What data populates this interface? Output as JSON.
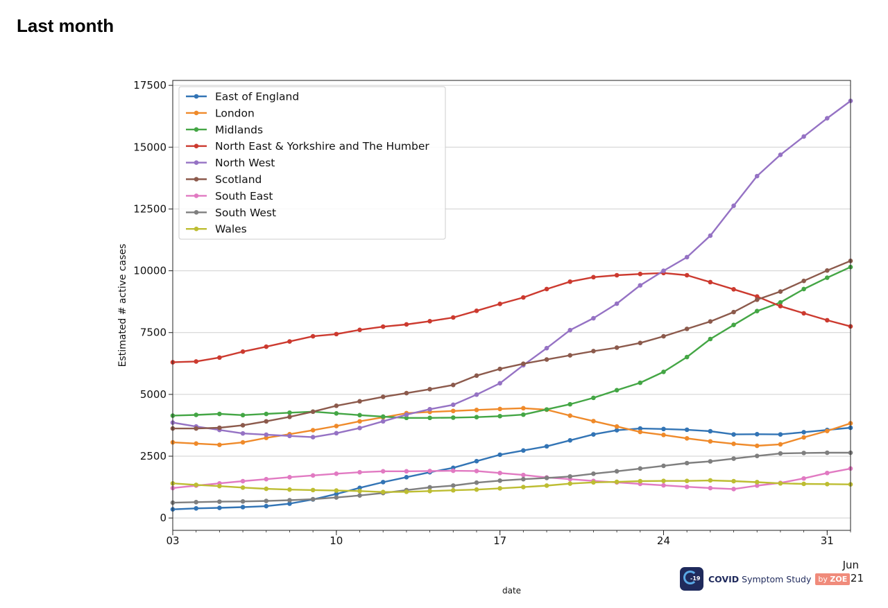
{
  "page": {
    "title": "Last month"
  },
  "chart_data": {
    "type": "line",
    "title": "",
    "xlabel": "date",
    "ylabel": "Estimated # active cases",
    "ylim": [
      -500,
      17700
    ],
    "xlim": [
      "2021-05-03",
      "2021-06-01"
    ],
    "x_ticks": [
      {
        "date": "2021-05-03",
        "label": "03"
      },
      {
        "date": "2021-05-10",
        "label": "10"
      },
      {
        "date": "2021-05-17",
        "label": "17"
      },
      {
        "date": "2021-05-24",
        "label": "24"
      },
      {
        "date": "2021-05-31",
        "label": "31"
      }
    ],
    "x_period_label": [
      "Jun",
      "2021"
    ],
    "y_ticks": [
      0,
      2500,
      5000,
      7500,
      10000,
      12500,
      15000,
      17500
    ],
    "grid": "horizontal",
    "legend_position": "upper-left",
    "x": [
      "2021-05-03",
      "2021-05-04",
      "2021-05-05",
      "2021-05-06",
      "2021-05-07",
      "2021-05-08",
      "2021-05-09",
      "2021-05-10",
      "2021-05-11",
      "2021-05-12",
      "2021-05-13",
      "2021-05-14",
      "2021-05-15",
      "2021-05-16",
      "2021-05-17",
      "2021-05-18",
      "2021-05-19",
      "2021-05-20",
      "2021-05-21",
      "2021-05-22",
      "2021-05-23",
      "2021-05-24",
      "2021-05-25",
      "2021-05-26",
      "2021-05-27",
      "2021-05-28",
      "2021-05-29",
      "2021-05-30",
      "2021-05-31",
      "2021-06-01"
    ],
    "series": [
      {
        "name": "East of England",
        "color": "#3274b5",
        "values": [
          350,
          390,
          410,
          440,
          480,
          580,
          750,
          970,
          1220,
          1450,
          1650,
          1850,
          2030,
          2300,
          2560,
          2730,
          2900,
          3140,
          3380,
          3550,
          3620,
          3600,
          3570,
          3510,
          3380,
          3390,
          3380,
          3470,
          3560,
          3650
        ]
      },
      {
        "name": "London",
        "color": "#ef8a2a",
        "values": [
          3060,
          3010,
          2960,
          3060,
          3240,
          3390,
          3550,
          3720,
          3910,
          4070,
          4240,
          4290,
          4330,
          4370,
          4410,
          4440,
          4380,
          4140,
          3920,
          3700,
          3480,
          3360,
          3220,
          3100,
          3000,
          2920,
          2980,
          3260,
          3520,
          3830
        ]
      },
      {
        "name": "Midlands",
        "color": "#44a645",
        "values": [
          4140,
          4170,
          4210,
          4160,
          4210,
          4260,
          4300,
          4230,
          4160,
          4100,
          4050,
          4050,
          4060,
          4080,
          4120,
          4180,
          4390,
          4600,
          4860,
          5170,
          5470,
          5910,
          6510,
          7240,
          7810,
          8370,
          8720,
          9260,
          9720,
          10150
        ]
      },
      {
        "name": "North East & Yorkshire and The Humber",
        "color": "#cc3a2f",
        "values": [
          6300,
          6330,
          6490,
          6730,
          6930,
          7140,
          7350,
          7440,
          7610,
          7740,
          7830,
          7960,
          8110,
          8380,
          8660,
          8920,
          9260,
          9560,
          9740,
          9820,
          9870,
          9910,
          9820,
          9540,
          9250,
          8960,
          8570,
          8280,
          8000,
          7750
        ]
      },
      {
        "name": "North West",
        "color": "#9572c4",
        "values": [
          3860,
          3700,
          3560,
          3420,
          3370,
          3320,
          3270,
          3430,
          3640,
          3910,
          4180,
          4400,
          4580,
          4990,
          5450,
          6180,
          6870,
          7600,
          8080,
          8670,
          9410,
          10000,
          10550,
          11420,
          12630,
          13830,
          14690,
          15430,
          16170,
          16870
        ]
      },
      {
        "name": "Scotland",
        "color": "#8c5a4c",
        "values": [
          3620,
          3620,
          3650,
          3750,
          3910,
          4090,
          4300,
          4540,
          4720,
          4900,
          5050,
          5210,
          5380,
          5760,
          6030,
          6240,
          6410,
          6580,
          6750,
          6890,
          7080,
          7350,
          7650,
          7950,
          8330,
          8830,
          9160,
          9590,
          10010,
          10400
        ]
      },
      {
        "name": "South East",
        "color": "#e17ac2",
        "values": [
          1210,
          1310,
          1400,
          1490,
          1570,
          1650,
          1720,
          1790,
          1850,
          1890,
          1890,
          1900,
          1910,
          1900,
          1820,
          1740,
          1640,
          1570,
          1500,
          1440,
          1380,
          1320,
          1260,
          1210,
          1170,
          1310,
          1420,
          1600,
          1820,
          2000
        ]
      },
      {
        "name": "South West",
        "color": "#7f7f7f",
        "values": [
          620,
          640,
          660,
          670,
          690,
          720,
          760,
          830,
          910,
          1010,
          1130,
          1240,
          1310,
          1430,
          1510,
          1570,
          1620,
          1680,
          1790,
          1890,
          2000,
          2110,
          2220,
          2290,
          2400,
          2510,
          2610,
          2630,
          2640,
          2640
        ]
      },
      {
        "name": "Wales",
        "color": "#bdbd32",
        "values": [
          1400,
          1340,
          1290,
          1230,
          1180,
          1150,
          1130,
          1110,
          1090,
          1050,
          1060,
          1090,
          1120,
          1150,
          1200,
          1250,
          1310,
          1390,
          1440,
          1460,
          1490,
          1500,
          1500,
          1520,
          1490,
          1450,
          1400,
          1380,
          1370,
          1360
        ]
      }
    ]
  },
  "footer": {
    "logo_badge_text": "-19",
    "logo_text_bold": "COVID",
    "logo_text_rest": "Symptom Study",
    "logo_tag_prefix": "by",
    "logo_tag_bold": "ZOE"
  }
}
